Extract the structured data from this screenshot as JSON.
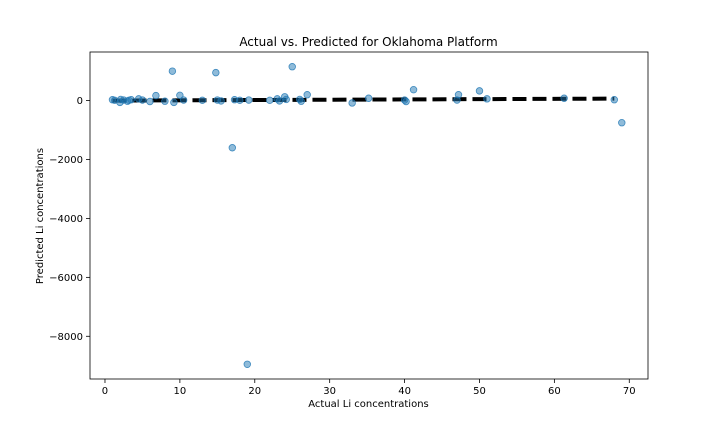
{
  "chart_data": {
    "type": "scatter",
    "title": "Actual vs. Predicted for Oklahoma Platform",
    "xlabel": "Actual Li concentrations",
    "ylabel": "Predicted Li concentrations",
    "xlim": [
      -2,
      72.5
    ],
    "ylim": [
      -9450,
      1650
    ],
    "xticks": [
      0,
      10,
      20,
      30,
      40,
      50,
      60,
      70
    ],
    "yticks": [
      -8000,
      -6000,
      -4000,
      -2000,
      0
    ],
    "xtick_labels": [
      "0",
      "10",
      "20",
      "30",
      "40",
      "50",
      "60",
      "70"
    ],
    "ytick_labels": [
      "−8000",
      "−6000",
      "−4000",
      "−2000",
      "0"
    ],
    "grid": false,
    "point_color": "#1f77b4",
    "reference_line": {
      "style": "dashed",
      "color": "#000000",
      "x": [
        1,
        68
      ],
      "y": [
        1,
        68
      ]
    },
    "points": [
      {
        "x": 1.0,
        "y": 30
      },
      {
        "x": 1.3,
        "y": 10
      },
      {
        "x": 2.0,
        "y": -60
      },
      {
        "x": 2.1,
        "y": 40
      },
      {
        "x": 2.5,
        "y": 20
      },
      {
        "x": 3.0,
        "y": -20
      },
      {
        "x": 3.2,
        "y": 10
      },
      {
        "x": 3.5,
        "y": 30
      },
      {
        "x": 4.5,
        "y": 60
      },
      {
        "x": 5.0,
        "y": 20
      },
      {
        "x": 6.0,
        "y": -30
      },
      {
        "x": 6.8,
        "y": 170
      },
      {
        "x": 8.0,
        "y": -20
      },
      {
        "x": 9.0,
        "y": 1000
      },
      {
        "x": 9.2,
        "y": -60
      },
      {
        "x": 10.0,
        "y": 180
      },
      {
        "x": 10.5,
        "y": 20
      },
      {
        "x": 13.0,
        "y": 10
      },
      {
        "x": 14.8,
        "y": 950
      },
      {
        "x": 15.0,
        "y": 20
      },
      {
        "x": 15.5,
        "y": -10
      },
      {
        "x": 17.0,
        "y": -1600
      },
      {
        "x": 17.3,
        "y": 30
      },
      {
        "x": 18.0,
        "y": 10
      },
      {
        "x": 19.0,
        "y": -8950
      },
      {
        "x": 19.2,
        "y": 20
      },
      {
        "x": 22.0,
        "y": 10
      },
      {
        "x": 23.0,
        "y": 60
      },
      {
        "x": 23.3,
        "y": -10
      },
      {
        "x": 24.0,
        "y": 130
      },
      {
        "x": 24.2,
        "y": 40
      },
      {
        "x": 25.0,
        "y": 1150
      },
      {
        "x": 26.0,
        "y": 40
      },
      {
        "x": 26.2,
        "y": -20
      },
      {
        "x": 27.0,
        "y": 200
      },
      {
        "x": 33.0,
        "y": -80
      },
      {
        "x": 35.2,
        "y": 80
      },
      {
        "x": 40.0,
        "y": 20
      },
      {
        "x": 40.2,
        "y": -30
      },
      {
        "x": 41.2,
        "y": 370
      },
      {
        "x": 47.0,
        "y": 20
      },
      {
        "x": 47.2,
        "y": 200
      },
      {
        "x": 50.0,
        "y": 330
      },
      {
        "x": 51.0,
        "y": 60
      },
      {
        "x": 61.3,
        "y": 80
      },
      {
        "x": 68.0,
        "y": 30
      },
      {
        "x": 69.0,
        "y": -750
      }
    ]
  }
}
